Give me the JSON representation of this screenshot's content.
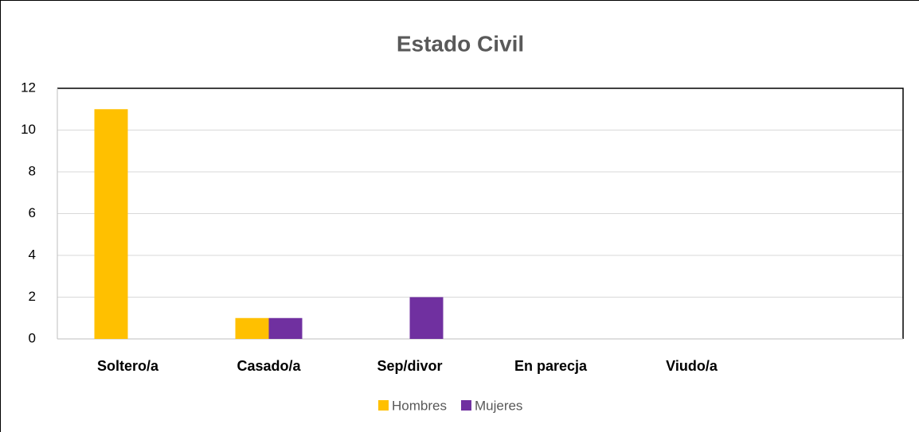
{
  "chart_data": {
    "type": "bar",
    "title": "Estado Civil",
    "categories": [
      "Soltero/a",
      "Casado/a",
      "Sep/divor",
      "En parecja",
      "Viudo/a",
      null
    ],
    "series": [
      {
        "name": "Hombres",
        "color": "#ffc000",
        "values": [
          11,
          1,
          0,
          0,
          0,
          null
        ]
      },
      {
        "name": "Mujeres",
        "color": "#7030a0",
        "values": [
          0,
          1,
          2,
          0,
          0,
          null
        ]
      }
    ],
    "ylim": [
      0,
      12
    ],
    "yticks": [
      0,
      2,
      4,
      6,
      8,
      10,
      12
    ],
    "grid": true,
    "legend": "bottom"
  }
}
